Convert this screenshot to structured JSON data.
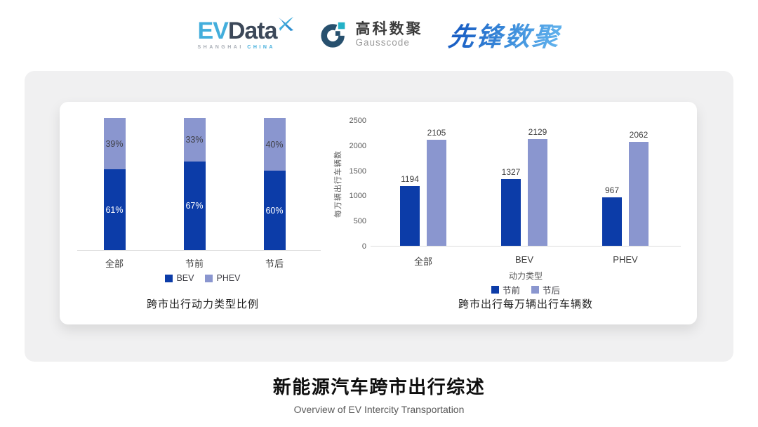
{
  "header": {
    "evdata": {
      "ev": "EV",
      "data": "Data",
      "sub_left": "SHANGHAI",
      "sub_right": "CHINA"
    },
    "gausscode": {
      "cn": "高科数聚",
      "en": "Gausscode"
    },
    "xianfeng": {
      "text": "先锋数聚"
    }
  },
  "chart_data": [
    {
      "type": "bar",
      "subtype": "stacked-percent",
      "title": "跨市出行动力类型比例",
      "categories": [
        "全部",
        "节前",
        "节后"
      ],
      "series": [
        {
          "name": "BEV",
          "color": "#0C3CA8",
          "values": [
            61,
            67,
            60
          ]
        },
        {
          "name": "PHEV",
          "color": "#8A96CF",
          "values": [
            39,
            33,
            40
          ]
        }
      ],
      "value_suffix": "%",
      "ylim": [
        0,
        100
      ],
      "grid": false,
      "legend_position": "bottom"
    },
    {
      "type": "bar",
      "subtype": "grouped",
      "title": "跨市出行每万辆出行车辆数",
      "categories": [
        "全部",
        "BEV",
        "PHEV"
      ],
      "series": [
        {
          "name": "节前",
          "color": "#0C3CA8",
          "values": [
            1194,
            1327,
            967
          ]
        },
        {
          "name": "节后",
          "color": "#8A96CF",
          "values": [
            2105,
            2129,
            2062
          ]
        }
      ],
      "xlabel": "动力类型",
      "ylabel": "每万辆出行车辆数",
      "yticks": [
        0,
        500,
        1000,
        1500,
        2000,
        2500
      ],
      "ylim": [
        0,
        2500
      ],
      "grid": false,
      "legend_position": "bottom"
    }
  ],
  "colors": {
    "primary_dark_blue": "#0C3CA8",
    "secondary_periwinkle": "#8A96CF",
    "panel_gray": "#F0F0F1",
    "evdata_blue": "#43AEDC",
    "gausscode_teal": "#23B1C7"
  },
  "footer": {
    "title": "新能源汽车跨市出行综述",
    "subtitle": "Overview of EV Intercity Transportation"
  }
}
